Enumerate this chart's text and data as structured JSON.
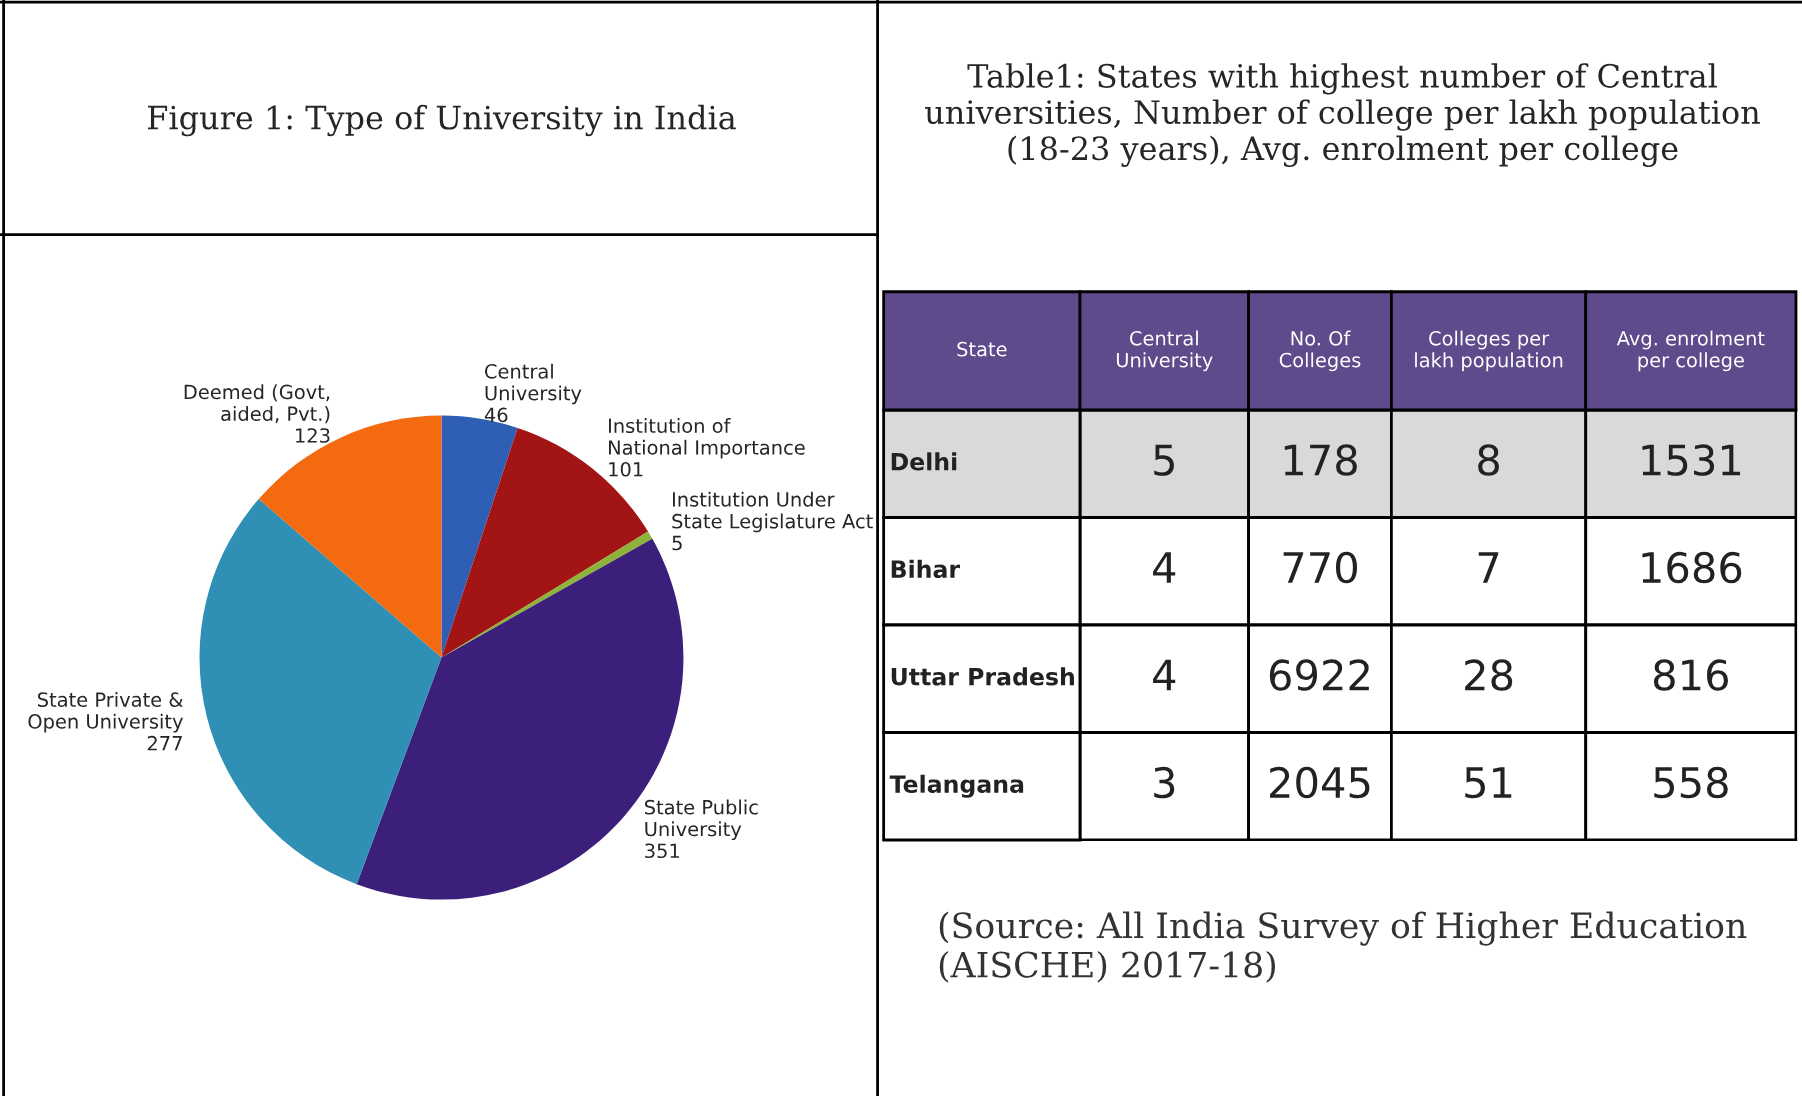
{
  "chart_data": [
    {
      "type": "pie",
      "title": "Figure 1: Type of University in India",
      "categories": [
        "Central University",
        "Institution of National Importance",
        "Institution Under State Legislature Act",
        "State Public University",
        "State Private & Open University",
        "Deemed (Govt, aided, Pvt.)"
      ],
      "values": [
        46,
        101,
        5,
        351,
        277,
        123
      ],
      "colors": [
        "#2e5fb5",
        "#a31515",
        "#8db33a",
        "#3b1f7a",
        "#2f8fb5",
        "#f36a10"
      ],
      "data_labels": true
    },
    {
      "type": "heatmap",
      "title": "Table1: States with highest number of Central universities, Number of college per lakh population (18-23 years), Avg. enrolment per college",
      "ylabel": "State",
      "categories": [
        "Central University",
        "No. Of Colleges",
        "Colleges per lakh population",
        "Avg. enrolment per college"
      ],
      "y_categories": [
        "Delhi",
        "Bihar",
        "Uttar Pradesh",
        "Telangana"
      ],
      "cells": [
        [
          5,
          178,
          8,
          1531
        ],
        [
          4,
          770,
          7,
          1686
        ],
        [
          4,
          6922,
          28,
          816
        ],
        [
          3,
          2045,
          51,
          558
        ]
      ],
      "data_labels": true,
      "annotations": [
        "(Source: All India Survey of Higher Education (AISCHE) 2017-18)"
      ]
    }
  ]
}
